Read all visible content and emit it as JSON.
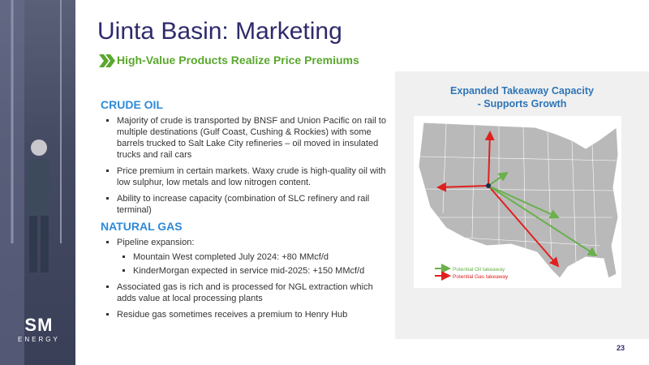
{
  "header": {
    "title": "Uinta Basin: Marketing",
    "subtitle": "High-Value Products Realize Price Premiums"
  },
  "sections": [
    {
      "heading": "CRUDE OIL",
      "bullets": [
        {
          "text": "Majority of crude is transported by BNSF and Union Pacific on rail to multiple destinations (Gulf Coast, Cushing & Rockies) with some barrels trucked to Salt Lake City refineries – oil moved in insulated trucks and rail cars"
        },
        {
          "text": "Price premium  in certain markets. Waxy crude is high-quality oil with low sulphur, low metals and low nitrogen content."
        },
        {
          "text": "Ability to increase capacity (combination of SLC refinery and rail terminal)"
        }
      ]
    },
    {
      "heading": "NATURAL GAS",
      "bullets": [
        {
          "text": "Pipeline expansion:",
          "sub": [
            "Mountain West completed July 2024: +80 MMcf/d",
            "KinderMorgan expected in service mid-2025: +150 MMcf/d"
          ]
        },
        {
          "text": "Associated gas is rich and is processed for NGL extraction which adds value at local processing plants"
        },
        {
          "text": "Residue gas sometimes receives a premium to Henry Hub"
        }
      ]
    }
  ],
  "map": {
    "title": [
      "Expanded Takeaway Capacity",
      "- Supports Growth"
    ],
    "legend": [
      "Potential Oil takeaway",
      "Potential Gas takeaway"
    ]
  },
  "logo": {
    "mark": "SM",
    "name": "ENERGY"
  },
  "page_number": "23"
}
